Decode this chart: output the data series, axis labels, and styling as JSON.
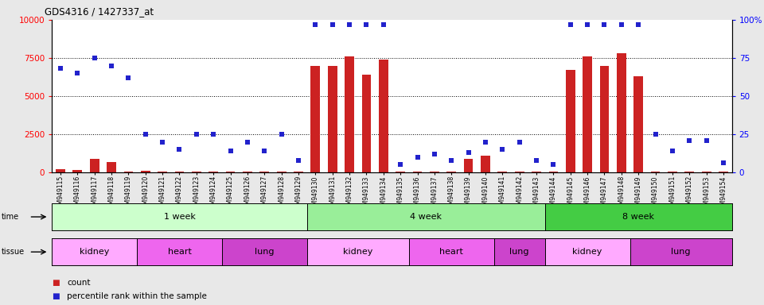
{
  "title": "GDS4316 / 1427337_at",
  "samples": [
    "GSM949115",
    "GSM949116",
    "GSM949117",
    "GSM949118",
    "GSM949119",
    "GSM949120",
    "GSM949121",
    "GSM949122",
    "GSM949123",
    "GSM949124",
    "GSM949125",
    "GSM949126",
    "GSM949127",
    "GSM949128",
    "GSM949129",
    "GSM949130",
    "GSM949131",
    "GSM949132",
    "GSM949133",
    "GSM949134",
    "GSM949135",
    "GSM949136",
    "GSM949137",
    "GSM949138",
    "GSM949139",
    "GSM949140",
    "GSM949141",
    "GSM949142",
    "GSM949143",
    "GSM949144",
    "GSM949145",
    "GSM949146",
    "GSM949147",
    "GSM949148",
    "GSM949149",
    "GSM949150",
    "GSM949151",
    "GSM949152",
    "GSM949153",
    "GSM949154"
  ],
  "count": [
    200,
    150,
    900,
    700,
    50,
    100,
    50,
    50,
    50,
    50,
    50,
    50,
    50,
    50,
    50,
    7000,
    7000,
    7600,
    6400,
    7400,
    50,
    50,
    50,
    50,
    900,
    1100,
    50,
    50,
    50,
    50,
    6700,
    7600,
    7000,
    7800,
    6300,
    50,
    50,
    50,
    50,
    50
  ],
  "percentile": [
    68,
    65,
    75,
    70,
    62,
    25,
    20,
    15,
    25,
    25,
    14,
    20,
    14,
    25,
    8,
    97,
    97,
    97,
    97,
    97,
    5,
    10,
    12,
    8,
    13,
    20,
    15,
    20,
    8,
    5,
    97,
    97,
    97,
    97,
    97,
    25,
    14,
    21,
    21,
    6
  ],
  "time_groups": [
    {
      "label": "1 week",
      "start": 0,
      "end": 15,
      "color": "#ccffcc"
    },
    {
      "label": "4 week",
      "start": 15,
      "end": 29,
      "color": "#99ee99"
    },
    {
      "label": "8 week",
      "start": 29,
      "end": 40,
      "color": "#44cc44"
    }
  ],
  "tissue_groups": [
    {
      "label": "kidney",
      "start": 0,
      "end": 5,
      "color": "#ffaaff"
    },
    {
      "label": "heart",
      "start": 5,
      "end": 10,
      "color": "#ee66ee"
    },
    {
      "label": "lung",
      "start": 10,
      "end": 15,
      "color": "#cc44cc"
    },
    {
      "label": "kidney",
      "start": 15,
      "end": 21,
      "color": "#ffaaff"
    },
    {
      "label": "heart",
      "start": 21,
      "end": 26,
      "color": "#ee66ee"
    },
    {
      "label": "lung",
      "start": 26,
      "end": 29,
      "color": "#cc44cc"
    },
    {
      "label": "kidney",
      "start": 29,
      "end": 34,
      "color": "#ffaaff"
    },
    {
      "label": "lung",
      "start": 34,
      "end": 40,
      "color": "#cc44cc"
    }
  ],
  "bar_color": "#cc2222",
  "dot_color": "#2222cc",
  "background_color": "#e8e8e8",
  "plot_bg_color": "#ffffff",
  "yticks_left": [
    0,
    2500,
    5000,
    7500,
    10000
  ],
  "yticks_right": [
    0,
    25,
    50,
    75,
    100
  ],
  "ylabels_right": [
    "0",
    "25",
    "50",
    "75",
    "100%"
  ]
}
